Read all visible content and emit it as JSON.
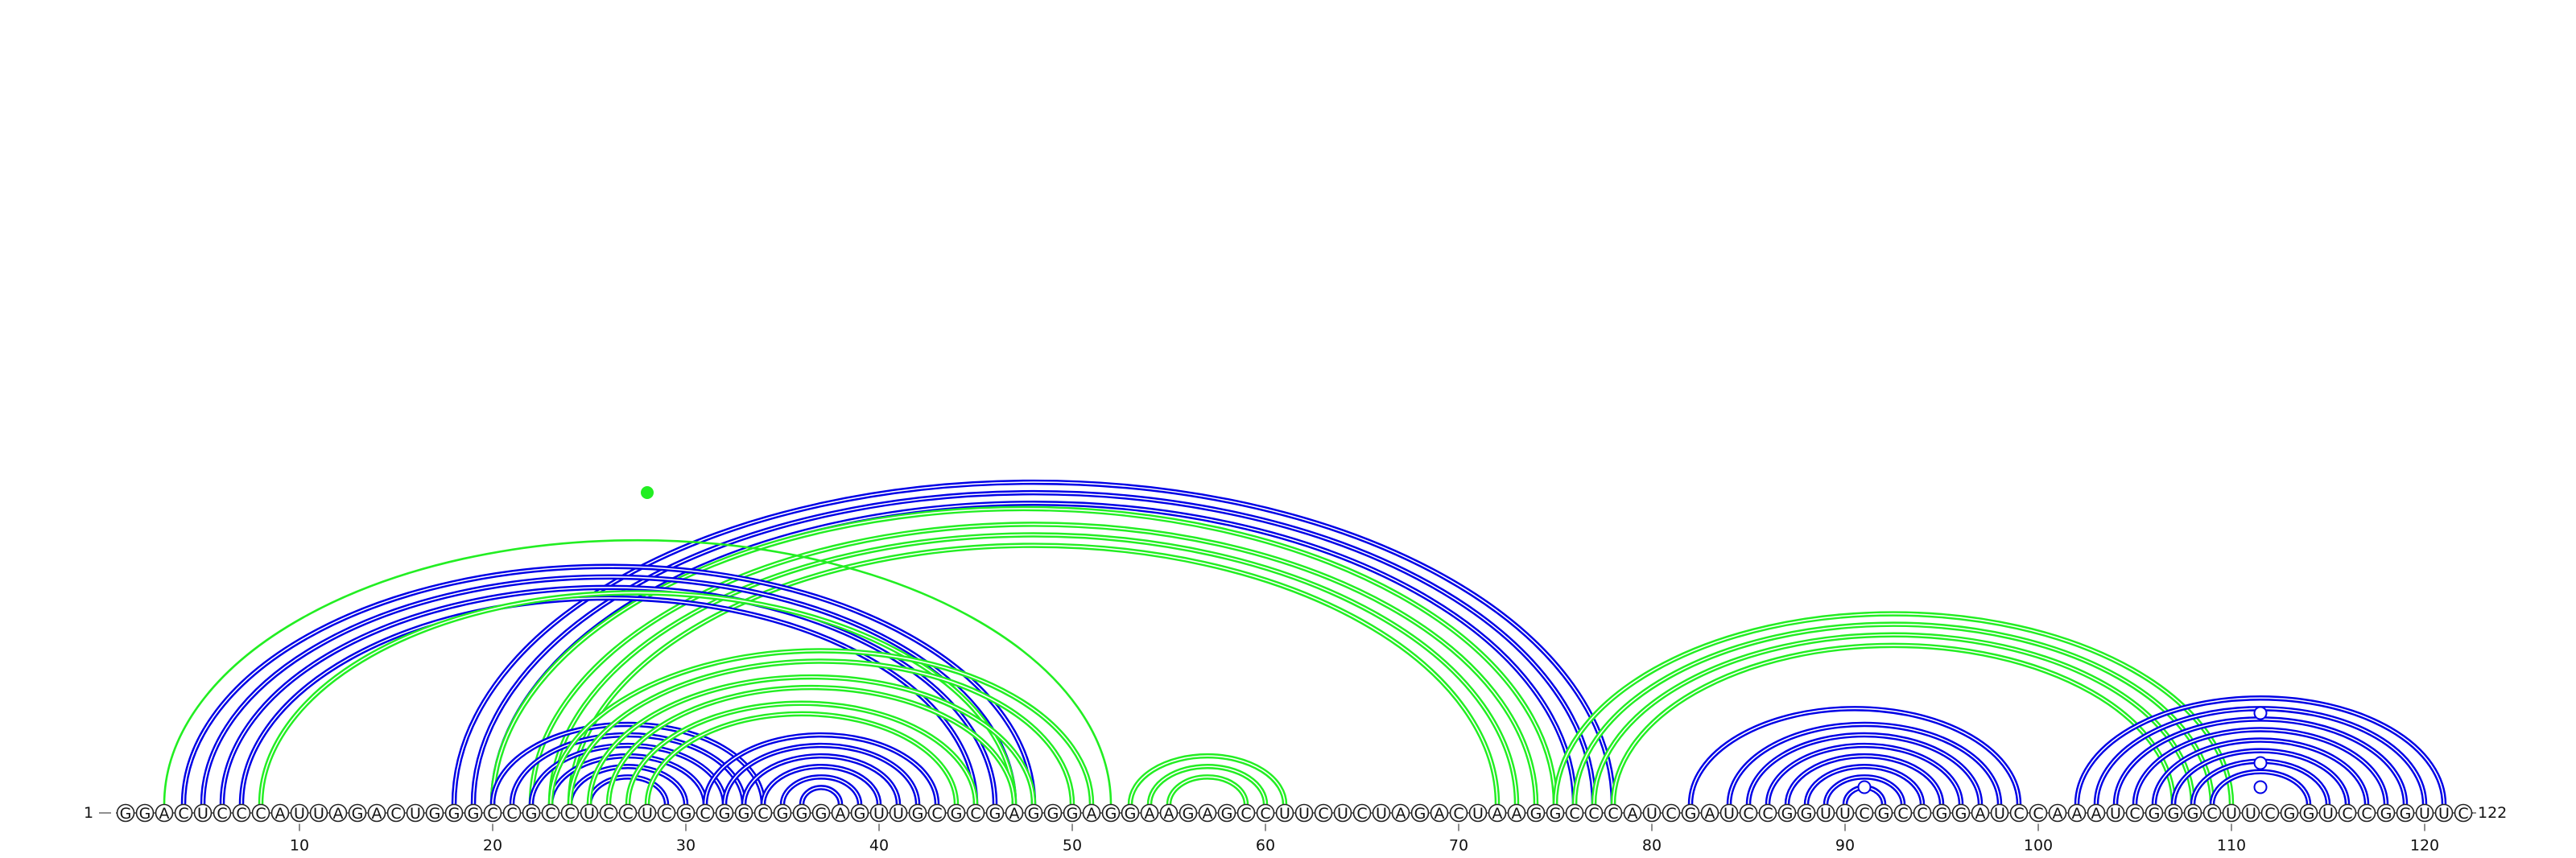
{
  "sequence": "GGACUCCCAUUAGACUGGGCCGCCUCCUCGCGGCGGGAGUUGCGCGAGGGAGGAAGAGCCUUCUCUAGACUAAGGCCCAUCGAUCCGGUUCGCCGGAUCCAAAUCGGGCUUCGGUCCGGUUC",
  "start_label": "1",
  "end_label": "122",
  "tick_labels": [
    "10",
    "20",
    "30",
    "40",
    "50",
    "60",
    "70",
    "80",
    "90",
    "100",
    "110",
    "120"
  ],
  "colors": {
    "blue": "#0000e6",
    "green": "#22ee22"
  },
  "arc_groups": [
    {
      "color": "blue",
      "count": 3,
      "offset": 1,
      "double": true,
      "pairs": [
        [
          18,
          78
        ],
        [
          19,
          77
        ],
        [
          20,
          76
        ]
      ]
    },
    {
      "color": "green",
      "count": 4,
      "offset": 0,
      "double": true,
      "pairs": [
        [
          20,
          75
        ],
        [
          22,
          74
        ],
        [
          23,
          73
        ],
        [
          24,
          72
        ]
      ]
    },
    {
      "color": "blue",
      "count": 4,
      "offset": 0,
      "double": true,
      "pairs": [
        [
          4,
          48
        ],
        [
          5,
          47
        ],
        [
          6,
          46
        ],
        [
          7,
          45
        ]
      ]
    },
    {
      "color": "green",
      "count": 1,
      "offset": 0,
      "double": true,
      "pairs": [
        [
          8,
          47
        ]
      ]
    },
    {
      "color": "green",
      "count": 1,
      "offset": 0,
      "double": false,
      "pairs": [
        [
          3,
          52
        ]
      ]
    },
    {
      "color": "blue",
      "count": 6,
      "offset": 0,
      "double": true,
      "pairs": [
        [
          20,
          34
        ],
        [
          21,
          33
        ],
        [
          22,
          32
        ],
        [
          23,
          31
        ],
        [
          24,
          30
        ],
        [
          25,
          29
        ]
      ]
    },
    {
      "color": "green",
      "count": 6,
      "offset": 0,
      "double": true,
      "pairs": [
        [
          23,
          51
        ],
        [
          24,
          50
        ],
        [
          25,
          48
        ],
        [
          26,
          47
        ],
        [
          27,
          45
        ],
        [
          28,
          44
        ]
      ]
    },
    {
      "color": "blue",
      "count": 6,
      "offset": 0,
      "double": true,
      "pairs": [
        [
          31,
          43
        ],
        [
          32,
          42
        ],
        [
          33,
          41
        ],
        [
          34,
          40
        ],
        [
          35,
          39
        ],
        [
          36,
          38
        ]
      ]
    },
    {
      "color": "green",
      "count": 3,
      "offset": 0,
      "double": true,
      "pairs": [
        [
          53,
          61
        ],
        [
          54,
          60
        ],
        [
          55,
          59
        ]
      ]
    },
    {
      "color": "green",
      "count": 4,
      "offset": 0,
      "double": true,
      "pairs": [
        [
          75,
          110
        ],
        [
          76,
          109
        ],
        [
          77,
          108
        ],
        [
          78,
          107
        ]
      ]
    },
    {
      "color": "blue",
      "count": 8,
      "offset": 0,
      "double": true,
      "pairs": [
        [
          82,
          99
        ],
        [
          84,
          98
        ],
        [
          85,
          97
        ],
        [
          86,
          96
        ],
        [
          87,
          95
        ],
        [
          88,
          94
        ],
        [
          89,
          93
        ],
        [
          90,
          92
        ]
      ]
    },
    {
      "color": "blue",
      "count": 8,
      "offset": 0,
      "double": true,
      "pairs": [
        [
          102,
          121
        ],
        [
          103,
          120
        ],
        [
          104,
          119
        ],
        [
          105,
          118
        ],
        [
          106,
          117
        ],
        [
          107,
          116
        ],
        [
          108,
          115
        ],
        [
          109,
          114
        ]
      ]
    }
  ],
  "markers": [
    {
      "color": "green",
      "position": 28,
      "filled": true
    },
    {
      "color": "blue",
      "position": 91,
      "filled": false
    },
    {
      "color": "blue",
      "position": 111.5,
      "filled": false
    }
  ]
}
